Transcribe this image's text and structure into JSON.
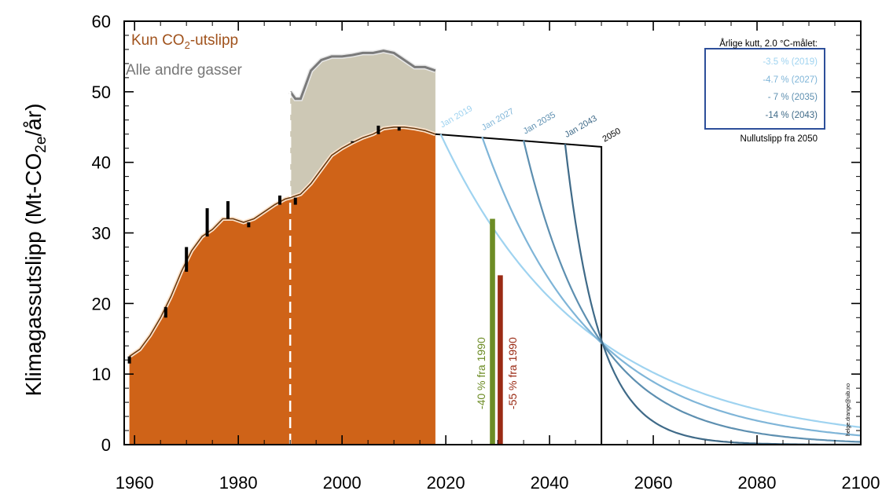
{
  "chart_data": {
    "type": "area",
    "ylabel": "Klimagassutslipp (Mt-CO2e/år)",
    "ylim": [
      0,
      60
    ],
    "xlim": [
      1958,
      2100
    ],
    "x_ticks": [
      1960,
      1980,
      2000,
      2020,
      2040,
      2060,
      2080,
      2100
    ],
    "y_ticks": [
      0,
      10,
      20,
      30,
      40,
      50,
      60
    ],
    "legend": [
      {
        "name": "Kun CO2-utslipp",
        "color": "#cf6318"
      },
      {
        "name": "Alle andre gasser",
        "color": "#808080"
      }
    ],
    "colors": {
      "co2_area": "#cf6318",
      "other_area": "#cdc8b5",
      "other_line": "#7a7a7a",
      "green_bar": "#6d8c25",
      "red_bar": "#9a2a14",
      "light_blue": "#9fd3f0",
      "mid_blue": "#7fb5d8",
      "dark_blue": "#5d8fb0",
      "darkest_blue": "#3f6a88"
    },
    "co2_series": {
      "x": [
        1959,
        1961,
        1963,
        1965,
        1967,
        1969,
        1971,
        1973,
        1975,
        1977,
        1979,
        1981,
        1983,
        1985,
        1987,
        1989,
        1990,
        1992,
        1994,
        1996,
        1998,
        2000,
        2002,
        2004,
        2006,
        2008,
        2010,
        2012,
        2014,
        2016,
        2018
      ],
      "y": [
        12.5,
        13.5,
        15.5,
        18.0,
        21.0,
        24.5,
        27.5,
        29.5,
        30.5,
        32.0,
        32.0,
        31.5,
        32.0,
        33.0,
        34.0,
        34.8,
        35.0,
        35.5,
        37.0,
        39.0,
        41.0,
        42.0,
        42.8,
        43.5,
        44.0,
        44.8,
        45.0,
        45.0,
        44.8,
        44.5,
        44.0
      ]
    },
    "co2_annual_peaks": [
      {
        "x": 1959,
        "y": 11.5
      },
      {
        "x": 1966,
        "y": 19.5
      },
      {
        "x": 1970,
        "y": 28.0
      },
      {
        "x": 1974,
        "y": 33.5
      },
      {
        "x": 1978,
        "y": 34.5
      },
      {
        "x": 1982,
        "y": 30.8
      },
      {
        "x": 1988,
        "y": 35.3
      },
      {
        "x": 1991,
        "y": 34.0
      },
      {
        "x": 2002,
        "y": 43.0
      },
      {
        "x": 2007,
        "y": 45.2
      },
      {
        "x": 2011,
        "y": 44.5
      }
    ],
    "all_gases_series": {
      "x": [
        1990,
        1991,
        1992,
        1993,
        1994,
        1996,
        1998,
        2000,
        2002,
        2004,
        2006,
        2008,
        2010,
        2012,
        2014,
        2016,
        2018
      ],
      "y": [
        50.0,
        49.0,
        49.0,
        51.0,
        53.0,
        54.5,
        55.0,
        55.0,
        55.2,
        55.5,
        55.5,
        55.8,
        55.5,
        54.5,
        53.5,
        53.5,
        53.0
      ]
    },
    "dashed_divider_x": 1990,
    "path_2050": {
      "points": [
        {
          "x": 2018,
          "y": 44.0
        },
        {
          "x": 2050,
          "y": 42.2
        },
        {
          "x": 2050,
          "y": 0
        }
      ],
      "label": "2050"
    },
    "pathways": [
      {
        "label": "Jan 2019",
        "start_year": 2019,
        "start_value": 44.0,
        "annual_cut_pct": 3.5
      },
      {
        "label": "Jan 2027",
        "start_year": 2027,
        "start_value": 43.6,
        "annual_cut_pct": 4.7
      },
      {
        "label": "Jan 2035",
        "start_year": 2035,
        "start_value": 43.1,
        "annual_cut_pct": 7
      },
      {
        "label": "Jan 2043",
        "start_year": 2043,
        "start_value": 42.6,
        "annual_cut_pct": 14
      }
    ],
    "bars": [
      {
        "x": 2029,
        "value": 32.0,
        "label": "-40 % fra 1990"
      },
      {
        "x": 2030.5,
        "value": 24.0,
        "label": "-55 % fra 1990"
      }
    ],
    "annotation_box": {
      "title": "Årlige kutt, 2.0 °C-målet:",
      "rows": [
        "-3.5  % (2019)",
        "-4.7  % (2027)",
        "- 7  % (2035)",
        "-14  % (2043)"
      ],
      "footer": "Nullutslipp fra 2050"
    },
    "credit": "helge.drange@uib.no"
  }
}
